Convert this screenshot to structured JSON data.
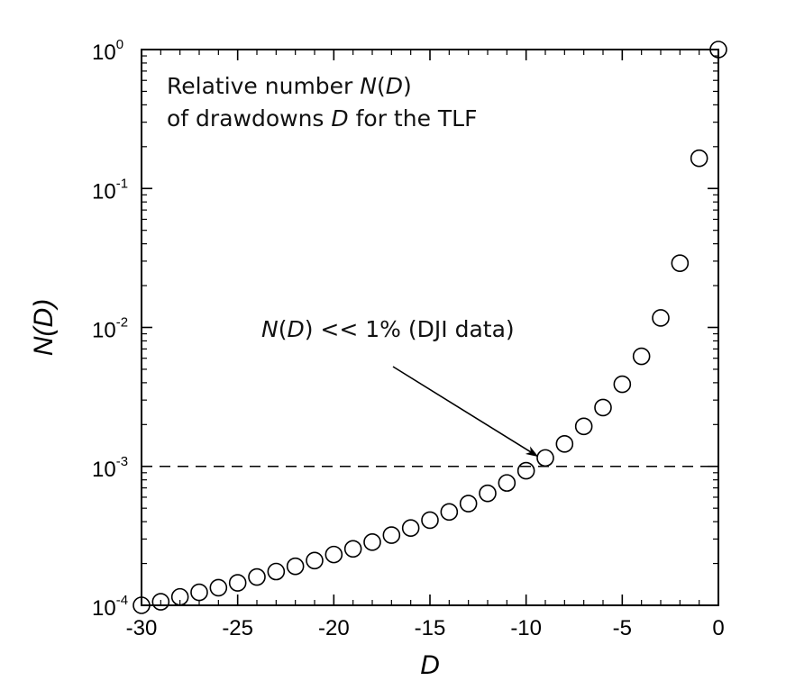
{
  "chart_data": {
    "type": "scatter",
    "title": "",
    "xlabel": "D",
    "ylabel": "N(D)",
    "xlim": [
      -30,
      0
    ],
    "ylim": [
      0.0001,
      1
    ],
    "yscale": "log",
    "grid": false,
    "x_ticks": [
      -30,
      -25,
      -20,
      -15,
      -10,
      -5,
      0
    ],
    "x_tick_labels": [
      "-30",
      "-25",
      "-20",
      "-15",
      "-10",
      "-5",
      "0"
    ],
    "y_ticks": [
      {
        "value": 1,
        "base": "10",
        "exp": "0"
      },
      {
        "value": 0.1,
        "base": "10",
        "exp": "-1"
      },
      {
        "value": 0.01,
        "base": "10",
        "exp": "-2"
      },
      {
        "value": 0.001,
        "base": "10",
        "exp": "-3"
      },
      {
        "value": 0.0001,
        "base": "10",
        "exp": "-4"
      }
    ],
    "series": [
      {
        "marker": "open-circle",
        "points": [
          {
            "x": 0,
            "y": 1.0
          },
          {
            "x": -1,
            "y": 0.165
          },
          {
            "x": -2,
            "y": 0.029
          },
          {
            "x": -3,
            "y": 0.0117
          },
          {
            "x": -4,
            "y": 0.0062
          },
          {
            "x": -5,
            "y": 0.0039
          },
          {
            "x": -6,
            "y": 0.00265
          },
          {
            "x": -7,
            "y": 0.00194
          },
          {
            "x": -8,
            "y": 0.00145
          },
          {
            "x": -9,
            "y": 0.00115
          },
          {
            "x": -10,
            "y": 0.00093
          },
          {
            "x": -11,
            "y": 0.00076
          },
          {
            "x": -12,
            "y": 0.00064
          },
          {
            "x": -13,
            "y": 0.00054
          },
          {
            "x": -14,
            "y": 0.00047
          },
          {
            "x": -15,
            "y": 0.00041
          },
          {
            "x": -16,
            "y": 0.00036
          },
          {
            "x": -17,
            "y": 0.00032
          },
          {
            "x": -18,
            "y": 0.000285
          },
          {
            "x": -19,
            "y": 0.000255
          },
          {
            "x": -20,
            "y": 0.000232
          },
          {
            "x": -21,
            "y": 0.00021
          },
          {
            "x": -22,
            "y": 0.000191
          },
          {
            "x": -23,
            "y": 0.000175
          },
          {
            "x": -24,
            "y": 0.00016
          },
          {
            "x": -25,
            "y": 0.000145
          },
          {
            "x": -26,
            "y": 0.000134
          },
          {
            "x": -27,
            "y": 0.000124
          },
          {
            "x": -28,
            "y": 0.000115
          },
          {
            "x": -29,
            "y": 0.000106
          },
          {
            "x": -30,
            "y": 0.0001
          }
        ]
      }
    ],
    "reference_lines": [
      {
        "orientation": "horizontal",
        "y": 0.001,
        "style": "dashed"
      }
    ],
    "annotations": [
      {
        "id": "legend-note",
        "lines": [
          [
            {
              "text": "Relative number ",
              "italic": false
            },
            {
              "text": "N",
              "italic": true
            },
            {
              "text": "(",
              "italic": false
            },
            {
              "text": "D",
              "italic": true
            },
            {
              "text": ")",
              "italic": false
            }
          ],
          [
            {
              "text": "of drawdowns ",
              "italic": false
            },
            {
              "text": "D",
              "italic": true
            },
            {
              "text": " for the TLF",
              "italic": false
            }
          ]
        ]
      },
      {
        "id": "arrow-note",
        "lines": [
          [
            {
              "text": "N",
              "italic": true
            },
            {
              "text": "(",
              "italic": false
            },
            {
              "text": "D",
              "italic": true
            },
            {
              "text": ") << 1% (DJI data)",
              "italic": false
            }
          ]
        ],
        "arrow_to": {
          "x": -9.4,
          "y": 0.00113
        }
      }
    ]
  }
}
